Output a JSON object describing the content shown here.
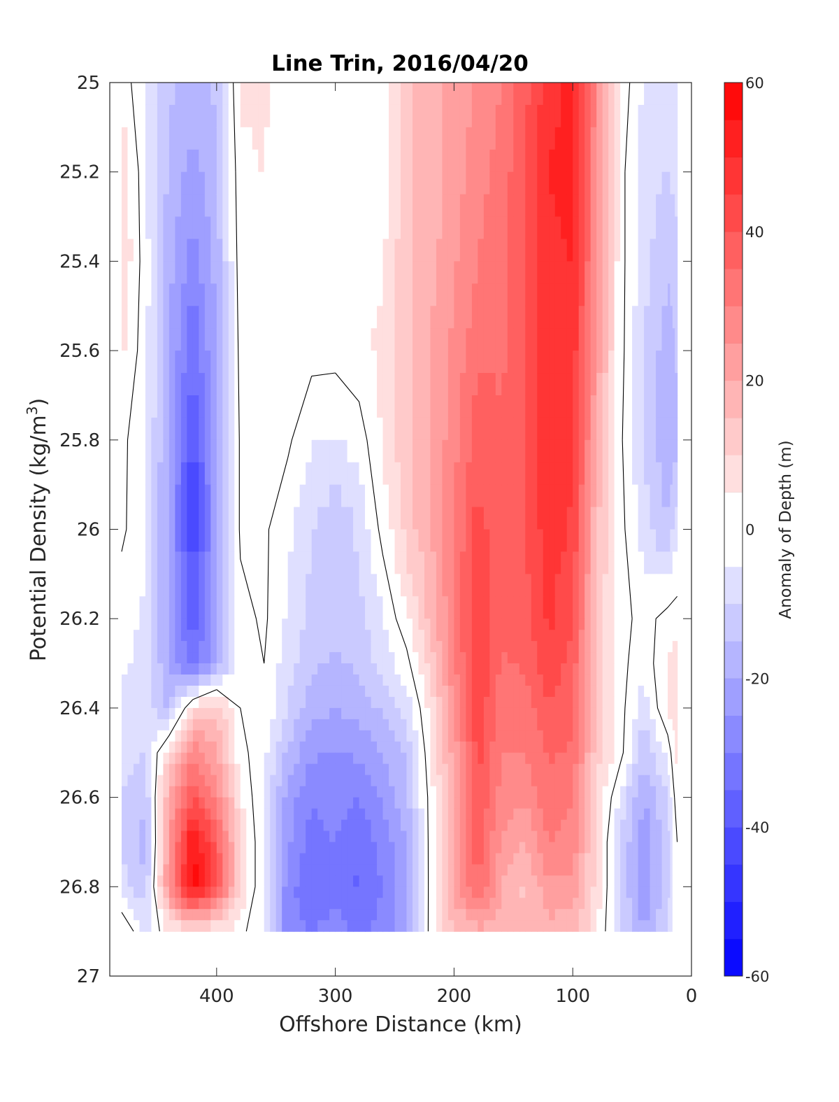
{
  "chart_data": {
    "type": "heatmap",
    "title": "Line Trin, 2016/04/20",
    "xlabel": "Offshore Distance (km)",
    "ylabel_main": "Potential Density (kg/m",
    "ylabel_sup": "3",
    "ylabel_close": ")",
    "xlim": [
      490,
      0
    ],
    "x_reversed": true,
    "ylim": [
      25,
      27
    ],
    "y_reversed": true,
    "x_ticks": [
      400,
      300,
      200,
      100,
      0
    ],
    "x_tick_labels": [
      "400",
      "300",
      "200",
      "100",
      "0"
    ],
    "y_ticks": [
      25,
      25.2,
      25.4,
      25.6,
      25.8,
      26,
      26.2,
      26.4,
      26.6,
      26.8,
      27
    ],
    "y_tick_labels": [
      "25",
      "25.2",
      "25.4",
      "25.6",
      "25.8",
      "26",
      "26.2",
      "26.4",
      "26.6",
      "26.8",
      "27"
    ],
    "grid": false,
    "colorbar": {
      "label": "Anomaly of Depth (m)",
      "range": [
        -60,
        60
      ],
      "step": 5,
      "ticks": [
        60,
        40,
        20,
        0,
        -20,
        -40,
        -60
      ],
      "tick_labels": [
        "60",
        "40",
        "20",
        "0",
        "-20",
        "-40",
        "-60"
      ],
      "colormap": "blue-white-red",
      "low_color": "#0000ff",
      "high_color": "#ff0000",
      "mid_color": "#ffffff"
    },
    "data_extent_x": [
      480,
      12
    ],
    "data_extent_y": [
      25,
      26.9
    ],
    "grid_x": [
      480,
      460,
      440,
      420,
      400,
      380,
      360,
      340,
      320,
      300,
      280,
      260,
      240,
      220,
      200,
      180,
      160,
      140,
      120,
      100,
      80,
      60,
      40,
      20,
      12
    ],
    "grid_y": [
      25.0,
      25.2,
      25.4,
      25.6,
      25.8,
      26.0,
      26.2,
      26.3,
      26.4,
      26.5,
      26.6,
      26.7,
      26.8,
      26.9
    ],
    "anomaly_values": [
      [
        4,
        -6,
        -14,
        -18,
        -14,
        6,
        6,
        1,
        1,
        1,
        1,
        0,
        14,
        18,
        22,
        26,
        30,
        38,
        48,
        52,
        28,
        4,
        -6,
        -8,
        -6
      ],
      [
        10,
        -4,
        -16,
        -22,
        -16,
        4,
        5,
        1,
        1,
        2,
        2,
        2,
        14,
        18,
        22,
        28,
        32,
        40,
        50,
        52,
        26,
        2,
        -8,
        -10,
        -8
      ],
      [
        10,
        -3,
        -18,
        -28,
        -18,
        3,
        4,
        1,
        2,
        2,
        3,
        4,
        14,
        18,
        24,
        30,
        34,
        40,
        48,
        50,
        26,
        2,
        -8,
        -14,
        -12
      ],
      [
        6,
        -3,
        -20,
        -34,
        -20,
        2,
        3,
        2,
        2,
        2,
        4,
        6,
        14,
        20,
        26,
        34,
        34,
        40,
        48,
        48,
        24,
        2,
        -10,
        -18,
        -14
      ],
      [
        1,
        -3,
        -22,
        -42,
        -22,
        1,
        2,
        1,
        -5,
        -6,
        -3,
        6,
        14,
        20,
        28,
        38,
        36,
        40,
        48,
        46,
        20,
        1,
        -10,
        -20,
        -16
      ],
      [
        1,
        -4,
        -22,
        -45,
        -22,
        1,
        1,
        -4,
        -10,
        -14,
        -9,
        2,
        12,
        20,
        30,
        42,
        36,
        40,
        48,
        44,
        16,
        2,
        -8,
        -14,
        -6
      ],
      [
        -3,
        -6,
        -22,
        -38,
        -22,
        -2,
        1,
        -6,
        -12,
        -14,
        -12,
        -5,
        4,
        16,
        30,
        46,
        36,
        38,
        46,
        40,
        14,
        2,
        -2,
        2,
        2
      ],
      [
        -4,
        -7,
        -20,
        -34,
        -20,
        -2,
        0,
        -8,
        -14,
        -16,
        -14,
        -8,
        -2,
        12,
        28,
        46,
        34,
        36,
        44,
        38,
        14,
        2,
        -4,
        6,
        8
      ],
      [
        -6,
        -8,
        -16,
        8,
        14,
        0,
        0,
        -10,
        -18,
        -20,
        -18,
        -14,
        -8,
        6,
        26,
        44,
        32,
        32,
        40,
        36,
        14,
        2,
        -8,
        6,
        8
      ],
      [
        -8,
        -10,
        10,
        30,
        20,
        2,
        -4,
        -16,
        -24,
        -26,
        -24,
        -20,
        -14,
        4,
        22,
        42,
        30,
        30,
        36,
        34,
        12,
        2,
        -14,
        -4,
        8
      ],
      [
        -10,
        -14,
        20,
        40,
        28,
        6,
        -6,
        -22,
        -30,
        -28,
        -30,
        -24,
        -16,
        2,
        20,
        40,
        28,
        26,
        34,
        30,
        10,
        -6,
        -20,
        -10,
        4
      ],
      [
        -10,
        -18,
        24,
        56,
        38,
        10,
        -6,
        -24,
        -32,
        -30,
        -34,
        -28,
        -20,
        2,
        20,
        38,
        24,
        20,
        30,
        28,
        8,
        -10,
        -24,
        -12,
        0
      ],
      [
        -8,
        -14,
        26,
        58,
        40,
        10,
        -6,
        -28,
        -34,
        -32,
        -36,
        -30,
        -22,
        2,
        22,
        36,
        20,
        14,
        24,
        24,
        8,
        -10,
        -24,
        -12,
        0
      ],
      [
        6,
        -6,
        4,
        6,
        4,
        2,
        -6,
        -28,
        -30,
        -28,
        -32,
        -28,
        -20,
        2,
        14,
        18,
        18,
        16,
        18,
        16,
        6,
        -10,
        -20,
        -10,
        0
      ]
    ]
  }
}
